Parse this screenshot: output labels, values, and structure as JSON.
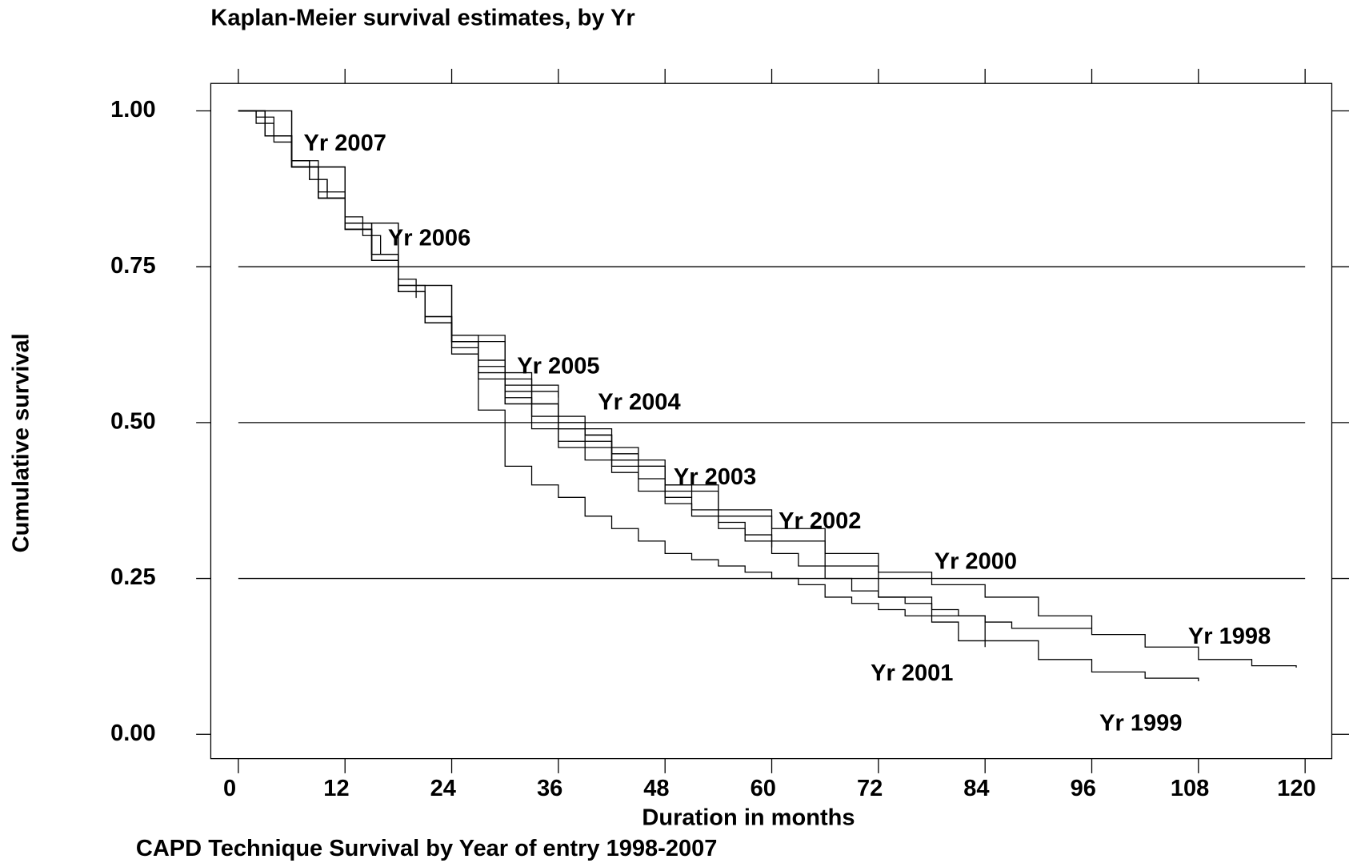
{
  "chart_data": {
    "type": "step-line",
    "title": "Kaplan-Meier survival estimates, by Yr",
    "x_label": "Duration in months",
    "y_label": "Cumulative survival",
    "caption": "CAPD Technique Survival by Year of entry 1998-2007",
    "xlim": [
      -3.1,
      123
    ],
    "ylim": [
      -0.039,
      1.044
    ],
    "xticks": [
      0,
      12,
      24,
      36,
      48,
      60,
      72,
      84,
      96,
      108,
      120
    ],
    "yticks": [
      {
        "value": 0,
        "label": "0.00"
      },
      {
        "value": 0.25,
        "label": "0.25"
      },
      {
        "value": 0.5,
        "label": "0.50"
      },
      {
        "value": 0.75,
        "label": "0.75"
      },
      {
        "value": 1,
        "label": "1.00"
      }
    ],
    "grid": true,
    "color": "#000000",
    "series": [
      {
        "name": "Yr 2007",
        "x": [
          0,
          2,
          4,
          6,
          8,
          10
        ],
        "values": [
          1,
          0.98,
          0.95,
          0.92,
          0.89,
          0.87
        ]
      },
      {
        "name": "Yr 2006",
        "x": [
          0,
          2,
          4,
          6,
          8,
          10,
          12,
          14,
          16,
          18,
          20
        ],
        "values": [
          1,
          0.99,
          0.96,
          0.92,
          0.89,
          0.86,
          0.83,
          0.8,
          0.77,
          0.73,
          0.7
        ]
      },
      {
        "name": "Yr 2005",
        "x": [
          0,
          3,
          6,
          9,
          12,
          15,
          18,
          21,
          24,
          27,
          30,
          33,
          36
        ],
        "values": [
          1,
          0.96,
          0.91,
          0.86,
          0.82,
          0.77,
          0.71,
          0.66,
          0.63,
          0.6,
          0.58,
          0.56,
          0.54
        ]
      },
      {
        "name": "Yr 2004",
        "x": [
          0,
          3,
          6,
          9,
          12,
          15,
          18,
          21,
          24,
          27,
          30,
          33,
          36,
          39,
          42,
          45
        ],
        "values": [
          1,
          0.96,
          0.91,
          0.86,
          0.81,
          0.76,
          0.71,
          0.66,
          0.63,
          0.59,
          0.56,
          0.53,
          0.51,
          0.48,
          0.46,
          0.44
        ]
      },
      {
        "name": "Yr 2003",
        "x": [
          0,
          3,
          6,
          9,
          12,
          15,
          18,
          21,
          24,
          27,
          30,
          33,
          36,
          39,
          42,
          45,
          48,
          51
        ],
        "values": [
          1,
          0.96,
          0.91,
          0.86,
          0.81,
          0.76,
          0.71,
          0.67,
          0.64,
          0.6,
          0.57,
          0.53,
          0.5,
          0.48,
          0.45,
          0.43,
          0.4,
          0.38
        ]
      },
      {
        "name": "Yr 2002",
        "x": [
          0,
          3,
          6,
          9,
          12,
          15,
          18,
          21,
          24,
          27,
          30,
          33,
          36,
          39,
          42,
          45,
          48,
          51,
          54,
          57,
          60
        ],
        "values": [
          1,
          0.96,
          0.91,
          0.86,
          0.81,
          0.76,
          0.71,
          0.67,
          0.62,
          0.57,
          0.54,
          0.51,
          0.49,
          0.46,
          0.44,
          0.41,
          0.38,
          0.36,
          0.34,
          0.32,
          0.3
        ]
      },
      {
        "name": "Yr 2001",
        "x": [
          0,
          3,
          6,
          9,
          12,
          15,
          18,
          21,
          24,
          27,
          30,
          33,
          36,
          39,
          42,
          45,
          48,
          51,
          54,
          57,
          60,
          63,
          66,
          69,
          72,
          75,
          78,
          81,
          84
        ],
        "values": [
          1,
          0.96,
          0.91,
          0.86,
          0.81,
          0.77,
          0.71,
          0.66,
          0.61,
          0.52,
          0.43,
          0.4,
          0.38,
          0.35,
          0.33,
          0.31,
          0.29,
          0.28,
          0.27,
          0.26,
          0.25,
          0.24,
          0.22,
          0.21,
          0.2,
          0.19,
          0.18,
          0.15,
          0.14
        ]
      },
      {
        "name": "Yr 2000",
        "x": [
          0,
          3,
          6,
          9,
          12,
          15,
          18,
          21,
          24,
          27,
          30,
          33,
          36,
          39,
          42,
          45,
          48,
          51,
          54,
          57,
          60,
          63,
          66,
          69,
          72,
          75,
          78,
          81,
          84,
          87,
          90,
          93,
          96
        ],
        "values": [
          1,
          0.96,
          0.92,
          0.87,
          0.82,
          0.77,
          0.72,
          0.67,
          0.63,
          0.58,
          0.53,
          0.49,
          0.46,
          0.44,
          0.42,
          0.39,
          0.37,
          0.35,
          0.33,
          0.31,
          0.29,
          0.27,
          0.25,
          0.23,
          0.22,
          0.21,
          0.2,
          0.19,
          0.18,
          0.17,
          0.17,
          0.17,
          0.17
        ]
      },
      {
        "name": "Yr 1999",
        "x": [
          0,
          6,
          12,
          18,
          24,
          30,
          36,
          42,
          48,
          54,
          60,
          66,
          72,
          78,
          84,
          90,
          96,
          102,
          108
        ],
        "values": [
          1,
          0.91,
          0.82,
          0.72,
          0.63,
          0.53,
          0.47,
          0.43,
          0.39,
          0.35,
          0.31,
          0.27,
          0.22,
          0.19,
          0.15,
          0.12,
          0.1,
          0.09,
          0.085
        ]
      },
      {
        "name": "Yr 1998",
        "x": [
          0,
          6,
          12,
          18,
          24,
          30,
          36,
          42,
          48,
          54,
          60,
          66,
          72,
          78,
          84,
          90,
          96,
          102,
          108,
          114,
          119
        ],
        "values": [
          1,
          0.91,
          0.82,
          0.72,
          0.64,
          0.55,
          0.49,
          0.44,
          0.4,
          0.36,
          0.33,
          0.29,
          0.26,
          0.24,
          0.22,
          0.19,
          0.16,
          0.14,
          0.12,
          0.11,
          0.107
        ]
      }
    ]
  }
}
